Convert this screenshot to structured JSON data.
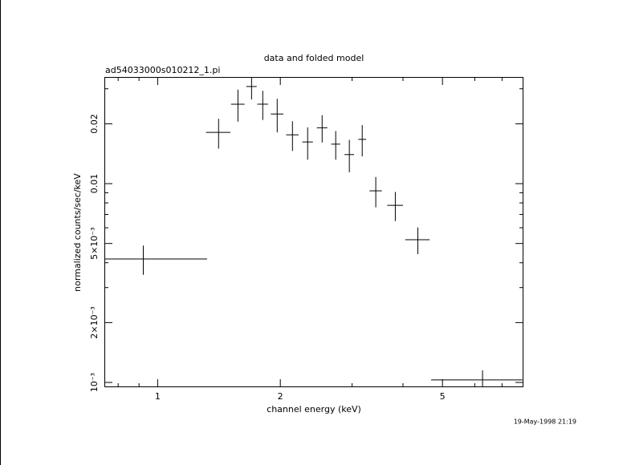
{
  "chart_data": {
    "type": "errorbar",
    "title": "data and folded model",
    "subtitle": "ad54033000s010212_1.pi",
    "xlabel": "channel energy (keV)",
    "ylabel": "normalized counts/sec/keV",
    "timestamp": "19-May-1998 21:19",
    "color": "#000000",
    "xlog": true,
    "ylog": true,
    "x": [
      0.922,
      1.411,
      1.574,
      1.7,
      1.811,
      1.965,
      2.142,
      2.334,
      2.533,
      2.735,
      2.954,
      3.177,
      3.43,
      3.83,
      4.35,
      6.27
    ],
    "xerr": [
      0.4,
      0.097,
      0.06,
      0.05,
      0.055,
      0.07,
      0.075,
      0.07,
      0.075,
      0.07,
      0.08,
      0.07,
      0.12,
      0.17,
      0.3,
      1.58
    ],
    "values": [
      0.00418,
      0.0181,
      0.0251,
      0.0308,
      0.0251,
      0.0224,
      0.0176,
      0.0162,
      0.0191,
      0.0158,
      0.014,
      0.0167,
      0.0092,
      0.00778,
      0.00522,
      0.00103
    ],
    "yerr": [
      0.0007,
      0.0031,
      0.0046,
      0.0043,
      0.0042,
      0.0043,
      0.003,
      0.003,
      0.003,
      0.0026,
      0.0026,
      0.003,
      0.0016,
      0.0013,
      0.0008,
      0.00012
    ],
    "xlim": [
      0.74,
      7.9
    ],
    "ylim": [
      0.000946,
      0.0344
    ],
    "xticks": [
      1,
      2,
      5
    ],
    "xminorticks": [
      0.8,
      0.9,
      3,
      4,
      6,
      7
    ],
    "yticks": [
      {
        "value": 0.001,
        "label": "10⁻³"
      },
      {
        "value": 0.002,
        "label": "2×10⁻³"
      },
      {
        "value": 0.005,
        "label": "5×10⁻³"
      },
      0.01,
      0.02
    ],
    "yminorticks": [
      0.003,
      0.004,
      0.006,
      0.007,
      0.008,
      0.009,
      0.03
    ]
  }
}
